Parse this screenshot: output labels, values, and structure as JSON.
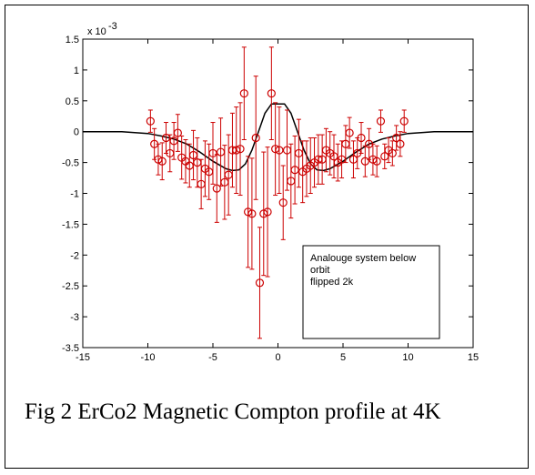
{
  "caption": "Fig 2 ErCo2 Magnetic Compton profile at 4K",
  "chart_data": {
    "type": "scatter",
    "xlim": [
      -15,
      15
    ],
    "ylim": [
      -3.5,
      1.5
    ],
    "y_multiplier_label": "x 10",
    "y_multiplier_exponent": "-3",
    "x_ticks": [
      "-15",
      "-10",
      "-5",
      "0",
      "5",
      "10",
      "15"
    ],
    "y_ticks": [
      "-3.5",
      "-3",
      "-2.5",
      "-2",
      "-1.5",
      "-1",
      "-0.5",
      "0",
      "0.5",
      "1",
      "1.5"
    ],
    "legend_lines": [
      "Analouge system below",
      "orbit",
      "flipped 2k"
    ],
    "legend_placement": "lower-right",
    "grid": false,
    "colors": {
      "data": "#cc0000",
      "model": "#000000"
    },
    "series": [
      {
        "kind": "data-with-errorbars",
        "x": [
          -9.8,
          -9.5,
          -9.2,
          -8.9,
          -8.6,
          -8.3,
          -8.0,
          -7.7,
          -7.4,
          -7.1,
          -6.8,
          -6.5,
          -6.2,
          -5.9,
          -5.6,
          -5.3,
          -5.0,
          -4.7,
          -4.4,
          -4.1,
          -3.8,
          -3.5,
          -3.2,
          -2.9,
          -2.6,
          -2.3,
          -2.0,
          -1.7,
          -1.4,
          -1.1,
          -0.8,
          -0.5,
          -0.2,
          0.1,
          0.4,
          0.7,
          1.0,
          1.3,
          1.6,
          1.9,
          2.2,
          2.5,
          2.8,
          3.1,
          3.4,
          3.7,
          4.0,
          4.3,
          4.6,
          4.9,
          5.2,
          5.5,
          5.8,
          6.1,
          6.4,
          6.7,
          7.0,
          7.3,
          7.6,
          7.9,
          8.2,
          8.5,
          8.8,
          9.1,
          9.4,
          9.7
        ],
        "y": [
          0.17,
          -0.2,
          -0.45,
          -0.48,
          -0.1,
          -0.35,
          -0.15,
          -0.02,
          -0.42,
          -0.48,
          -0.55,
          -0.38,
          -0.5,
          -0.85,
          -0.6,
          -0.65,
          -0.35,
          -0.92,
          -0.33,
          -0.82,
          -0.7,
          -0.3,
          -0.3,
          -0.28,
          0.62,
          -1.3,
          -1.33,
          -0.1,
          -2.45,
          -1.33,
          -1.3,
          0.62,
          -0.28,
          -0.3,
          -1.15,
          -0.3,
          -0.8,
          -0.62,
          -0.35,
          -0.65,
          -0.6,
          -0.55,
          -0.5,
          -0.45,
          -0.45,
          -0.3,
          -0.35,
          -0.4,
          -0.5,
          -0.45,
          -0.2,
          -0.02,
          -0.45,
          -0.35,
          -0.1,
          -0.48,
          -0.2,
          -0.45,
          -0.48,
          0.17,
          -0.4,
          -0.3,
          -0.35,
          -0.1,
          -0.2,
          0.17
        ],
        "err": [
          0.18,
          0.25,
          0.25,
          0.3,
          0.25,
          0.3,
          0.3,
          0.3,
          0.35,
          0.35,
          0.35,
          0.4,
          0.4,
          0.4,
          0.45,
          0.45,
          0.5,
          0.55,
          0.55,
          0.6,
          0.65,
          0.6,
          0.7,
          0.75,
          0.75,
          0.9,
          0.9,
          1.0,
          0.9,
          1.0,
          1.05,
          0.75,
          0.75,
          0.7,
          0.6,
          0.65,
          0.6,
          0.55,
          0.55,
          0.5,
          0.45,
          0.45,
          0.4,
          0.4,
          0.4,
          0.35,
          0.35,
          0.35,
          0.3,
          0.3,
          0.3,
          0.25,
          0.3,
          0.25,
          0.25,
          0.25,
          0.25,
          0.25,
          0.25,
          0.18,
          0.2,
          0.2,
          0.2,
          0.2,
          0.2,
          0.18
        ]
      },
      {
        "kind": "model-line",
        "x": [
          -15,
          -12,
          -10,
          -9,
          -8,
          -7,
          -6,
          -5,
          -4,
          -3.5,
          -3,
          -2.5,
          -2,
          -1.5,
          -1,
          -0.5,
          0,
          0.5,
          1,
          1.5,
          2,
          2.5,
          3,
          3.5,
          4,
          5,
          6,
          7,
          8,
          9,
          10,
          12,
          15
        ],
        "y": [
          0,
          0,
          -0.03,
          -0.07,
          -0.12,
          -0.2,
          -0.33,
          -0.48,
          -0.6,
          -0.63,
          -0.62,
          -0.52,
          -0.3,
          0.0,
          0.3,
          0.45,
          0.45,
          0.45,
          0.3,
          0.0,
          -0.3,
          -0.52,
          -0.62,
          -0.63,
          -0.6,
          -0.48,
          -0.33,
          -0.2,
          -0.12,
          -0.07,
          -0.03,
          0,
          0
        ]
      }
    ]
  }
}
